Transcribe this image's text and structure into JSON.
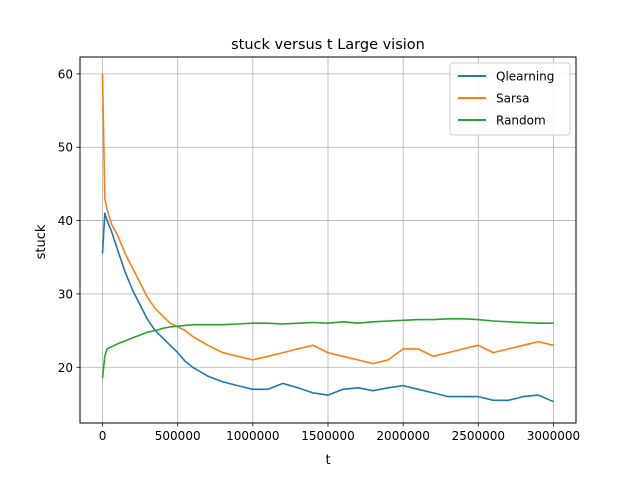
{
  "chart_data": {
    "type": "line",
    "title": "stuck versus t Large vision",
    "xlabel": "t",
    "ylabel": "stuck",
    "xlim": [
      -150000,
      3150000
    ],
    "ylim": [
      12.4,
      62.3
    ],
    "xticks": [
      0,
      500000,
      1000000,
      1500000,
      2000000,
      2500000,
      3000000
    ],
    "xtick_labels": [
      "0",
      "500000",
      "1000000",
      "1500000",
      "2000000",
      "2500000",
      "3000000"
    ],
    "yticks": [
      20,
      30,
      40,
      50,
      60
    ],
    "ytick_labels": [
      "20",
      "30",
      "40",
      "50",
      "60"
    ],
    "grid": true,
    "legend_position": "top-right",
    "x": [
      0,
      15000,
      30000,
      60000,
      100000,
      150000,
      200000,
      250000,
      300000,
      350000,
      400000,
      450000,
      500000,
      550000,
      600000,
      700000,
      800000,
      900000,
      1000000,
      1100000,
      1200000,
      1300000,
      1400000,
      1500000,
      1600000,
      1700000,
      1800000,
      1900000,
      2000000,
      2100000,
      2200000,
      2300000,
      2400000,
      2500000,
      2600000,
      2700000,
      2800000,
      2900000,
      3000000
    ],
    "series": [
      {
        "name": "Qlearning",
        "color": "#1f77b4",
        "values": [
          35.5,
          41.0,
          40.0,
          38.5,
          36.0,
          33.0,
          30.5,
          28.5,
          26.5,
          25.0,
          24.0,
          23.0,
          22.0,
          20.8,
          20.0,
          18.8,
          18.0,
          17.5,
          17.0,
          17.0,
          17.8,
          17.2,
          16.5,
          16.2,
          17.0,
          17.2,
          16.8,
          17.2,
          17.5,
          17.0,
          16.5,
          16.0,
          16.0,
          16.0,
          15.5,
          15.5,
          16.0,
          16.2,
          15.3
        ]
      },
      {
        "name": "Sarsa",
        "color": "#ff7f0e",
        "values": [
          60.0,
          43.0,
          41.5,
          39.5,
          38.0,
          35.5,
          33.5,
          31.5,
          29.5,
          28.0,
          27.0,
          26.0,
          25.5,
          25.0,
          24.2,
          23.0,
          22.0,
          21.5,
          21.0,
          21.5,
          22.0,
          22.5,
          23.0,
          22.0,
          21.5,
          21.0,
          20.5,
          21.0,
          22.5,
          22.5,
          21.5,
          22.0,
          22.5,
          23.0,
          22.0,
          22.5,
          23.0,
          23.5,
          23.0
        ]
      },
      {
        "name": "Random",
        "color": "#2ca02c",
        "values": [
          18.5,
          21.5,
          22.5,
          22.8,
          23.2,
          23.6,
          24.0,
          24.4,
          24.8,
          25.0,
          25.3,
          25.5,
          25.6,
          25.7,
          25.8,
          25.8,
          25.8,
          25.9,
          26.0,
          26.0,
          25.9,
          26.0,
          26.1,
          26.0,
          26.2,
          26.0,
          26.2,
          26.3,
          26.4,
          26.5,
          26.5,
          26.6,
          26.6,
          26.5,
          26.3,
          26.2,
          26.1,
          26.0,
          26.0
        ]
      }
    ]
  }
}
